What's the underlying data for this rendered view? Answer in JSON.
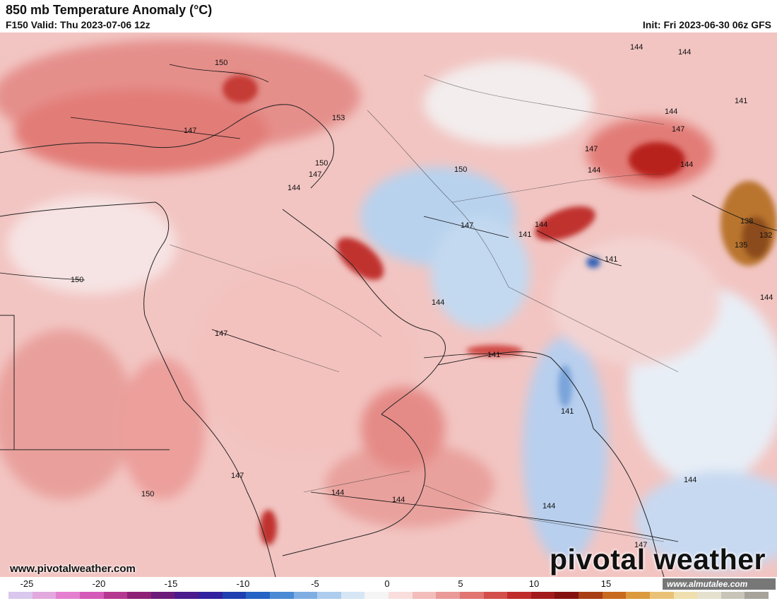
{
  "header": {
    "title": "850 mb Temperature Anomaly (°C)",
    "valid": "F150 Valid: Thu 2023-07-06 12z",
    "init": "Init: Fri 2023-06-30 06z GFS"
  },
  "map": {
    "contour_labels": [
      "150",
      "153",
      "147",
      "150",
      "147",
      "144",
      "150",
      "147",
      "150",
      "147",
      "141",
      "144",
      "141",
      "141",
      "144",
      "144",
      "144",
      "144",
      "147",
      "144",
      "141",
      "147",
      "144",
      "138",
      "135",
      "132",
      "144",
      "141",
      "144",
      "147",
      "150",
      "144",
      "144",
      "144",
      "147"
    ]
  },
  "footer": {
    "site_url": "www.pivotalweather.com",
    "brand": "pivotal weather",
    "watermark": "www.almutalee.com"
  },
  "colorbar": {
    "tick_labels": [
      "-25",
      "-20",
      "-15",
      "-10",
      "-5",
      "0",
      "5",
      "10",
      "15"
    ],
    "colors": [
      "#d9c7ee",
      "#e2a9de",
      "#e57fcf",
      "#d459b8",
      "#b4388f",
      "#8e2177",
      "#6c1a79",
      "#4b1a8c",
      "#31219e",
      "#1f3fb0",
      "#2563c4",
      "#4b8ad4",
      "#7eaee2",
      "#aecdee",
      "#d6e6f5",
      "#f5f5f5",
      "#f9dedd",
      "#f3bdbb",
      "#ea9a97",
      "#e07571",
      "#d34f4b",
      "#c02c2c",
      "#a31a1a",
      "#84110f",
      "#a83e14",
      "#c86a1f",
      "#dc9a3f",
      "#e9c277",
      "#f0dfae",
      "#e6e1cf",
      "#c9c4b8",
      "#a8a39a"
    ]
  }
}
